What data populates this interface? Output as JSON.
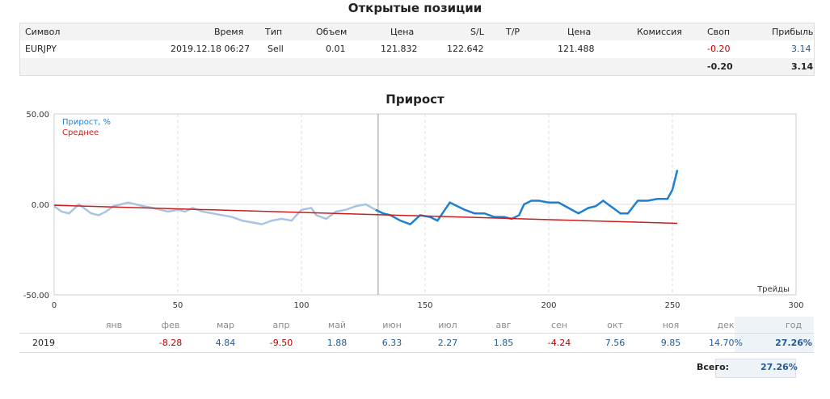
{
  "headings": {
    "open_positions": "Открытые позиции",
    "growth": "Прирост"
  },
  "positions": {
    "headers": [
      "Символ",
      "Время",
      "Тип",
      "Объем",
      "Цена",
      "S/L",
      "T/P",
      "Цена",
      "Комиссия",
      "Своп",
      "Прибыль"
    ],
    "rows": [
      {
        "symbol": "EURJPY",
        "time": "2019.12.18 06:27",
        "type": "Sell",
        "volume": "0.01",
        "price": "121.832",
        "sl": "122.642",
        "tp": "",
        "price2": "121.488",
        "commission": "",
        "swap": "-0.20",
        "profit": "3.14"
      }
    ],
    "totals": {
      "swap": "-0.20",
      "profit": "3.14"
    }
  },
  "chart_data": {
    "type": "line",
    "title": "Прирост",
    "xlabel": "Трейды",
    "ylabel": "",
    "xlim": [
      0,
      300
    ],
    "ylim": [
      -50,
      50
    ],
    "x_ticks": [
      "0",
      "50",
      "100",
      "150",
      "200",
      "250",
      "300"
    ],
    "y_ticks": [
      "50.00",
      "0.00",
      "-50.00"
    ],
    "legend_position": "top-left",
    "grid": true,
    "colors": {
      "history": "#a9c4e0",
      "current": "#1f7fd1",
      "average": "#c81e1e",
      "grid": "#dddddd"
    },
    "series": [
      {
        "name": "Прирост, %",
        "x": [
          0,
          3,
          6,
          10,
          12,
          15,
          18,
          21,
          24,
          27,
          30,
          33,
          36,
          40,
          43,
          46,
          50,
          53,
          56,
          60,
          64,
          68,
          72,
          76,
          80,
          84,
          88,
          92,
          96,
          100,
          104,
          106,
          110,
          114,
          118,
          122,
          126,
          130,
          133,
          136,
          140,
          144,
          148,
          152,
          155,
          158,
          160,
          163,
          166,
          170,
          174,
          178,
          182,
          185,
          188,
          190,
          193,
          196,
          200,
          204,
          208,
          212,
          216,
          219,
          222,
          226,
          229,
          232,
          236,
          240,
          244,
          248,
          250,
          252
        ],
        "y": [
          -1,
          -4,
          -5,
          0,
          -2,
          -5,
          -6,
          -4,
          -1,
          0,
          1,
          0,
          -1,
          -2,
          -3,
          -4,
          -3,
          -4,
          -2,
          -4,
          -5,
          -6,
          -7,
          -9,
          -10,
          -11,
          -9,
          -8,
          -9,
          -3,
          -2,
          -6,
          -8,
          -4,
          -3,
          -1,
          0,
          -3,
          -5,
          -6,
          -9,
          -11,
          -6,
          -7,
          -9,
          -3,
          1,
          -1,
          -3,
          -5,
          -5,
          -7,
          -7,
          -8,
          -6,
          0,
          2,
          2,
          1,
          1,
          -2,
          -5,
          -2,
          -1,
          2,
          -2,
          -5,
          -5,
          2,
          2,
          3,
          3,
          8,
          19
        ]
      },
      {
        "name": "Среднее",
        "x": [
          0,
          252
        ],
        "y": [
          -0.5,
          -10.5
        ]
      }
    ]
  },
  "monthly": {
    "months": [
      "янв",
      "фев",
      "мар",
      "апр",
      "май",
      "июн",
      "июл",
      "авг",
      "сен",
      "окт",
      "ноя",
      "дек",
      "год"
    ],
    "year": "2019",
    "values": [
      "",
      "-8.28",
      "4.84",
      "-9.50",
      "1.88",
      "6.33",
      "2.27",
      "1.85",
      "-4.24",
      "7.56",
      "9.85",
      "14.70%",
      "27.26%"
    ],
    "total_label": "Всего:",
    "total_value": "27.26%"
  }
}
